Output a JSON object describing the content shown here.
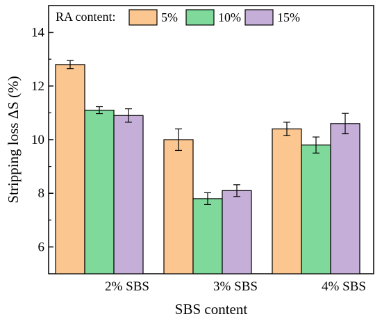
{
  "chart_data": {
    "type": "bar",
    "title": "",
    "xlabel": "SBS content",
    "ylabel": "Stripping loss ΔS (%)",
    "ylim": [
      5,
      15
    ],
    "yticks": [
      6,
      8,
      10,
      12,
      14
    ],
    "categories": [
      "2% SBS",
      "3% SBS",
      "4% SBS"
    ],
    "legend": {
      "title": "RA content:",
      "placement": "top"
    },
    "series": [
      {
        "name": "5%",
        "color": "#FBC68F",
        "values": [
          12.8,
          10.0,
          10.4
        ],
        "errors": [
          0.15,
          0.4,
          0.25
        ]
      },
      {
        "name": "10%",
        "color": "#7FD99B",
        "values": [
          11.1,
          7.8,
          9.8
        ],
        "errors": [
          0.13,
          0.22,
          0.3
        ]
      },
      {
        "name": "15%",
        "color": "#C5AED8",
        "values": [
          10.9,
          8.1,
          10.6
        ],
        "errors": [
          0.25,
          0.22,
          0.38
        ]
      }
    ],
    "grid": false
  }
}
